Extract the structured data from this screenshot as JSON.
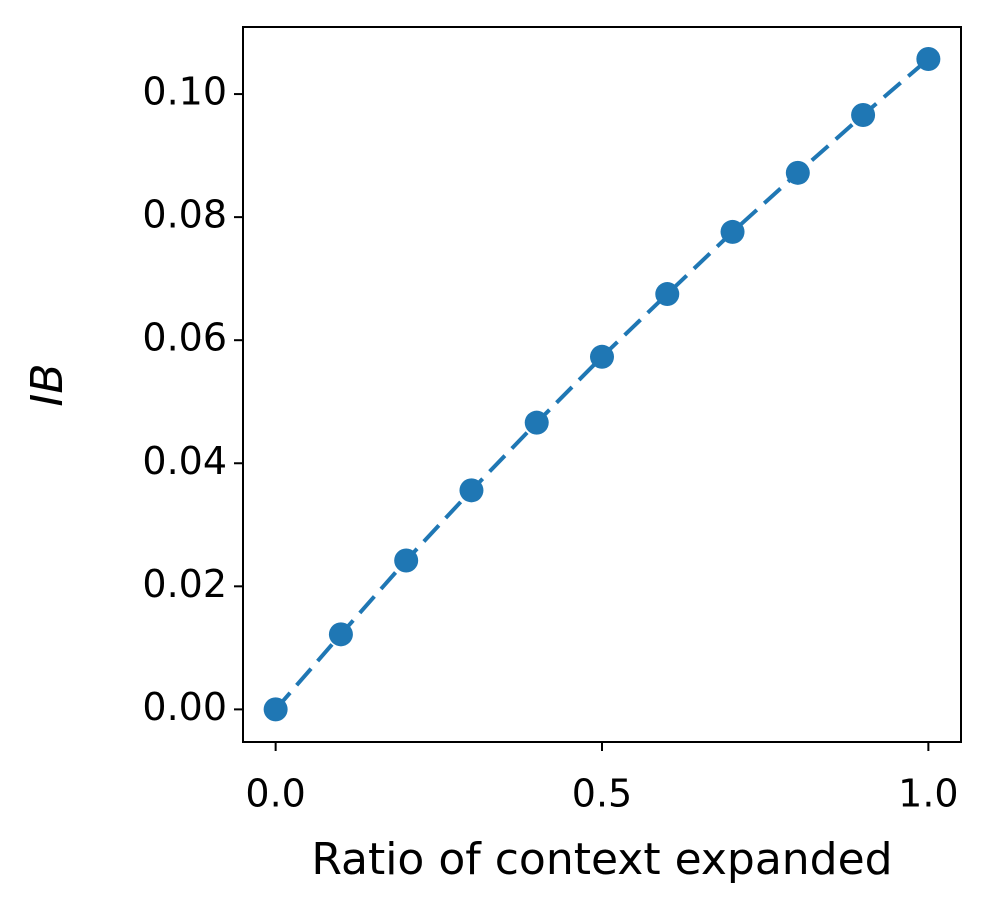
{
  "chart_data": {
    "type": "line",
    "x_label": "Ratio of context expanded",
    "y_label": "IB",
    "x": [
      0.0,
      0.1,
      0.2,
      0.3,
      0.4,
      0.5,
      0.6,
      0.7,
      0.8,
      0.9,
      1.0
    ],
    "series": [
      {
        "color": "#1f77b4",
        "dashed": true,
        "markers": true,
        "values": [
          0.0,
          0.0122,
          0.0242,
          0.0356,
          0.0466,
          0.0573,
          0.0675,
          0.0776,
          0.0872,
          0.0966,
          0.1057
        ]
      }
    ],
    "xlim": [
      -0.05,
      1.05
    ],
    "ylim": [
      -0.0053,
      0.1109
    ],
    "xticks": [
      {
        "value": 0,
        "label": "0.0"
      },
      {
        "value": 0.5,
        "label": "0.5"
      },
      {
        "value": 1,
        "label": "1.0"
      }
    ],
    "yticks": [
      {
        "value": 0,
        "label": "0.00"
      },
      {
        "value": 0.02,
        "label": "0.02"
      },
      {
        "value": 0.04,
        "label": "0.04"
      },
      {
        "value": 0.06,
        "label": "0.06"
      },
      {
        "value": 0.08,
        "label": "0.08"
      },
      {
        "value": 0.1,
        "label": "0.10"
      }
    ]
  }
}
